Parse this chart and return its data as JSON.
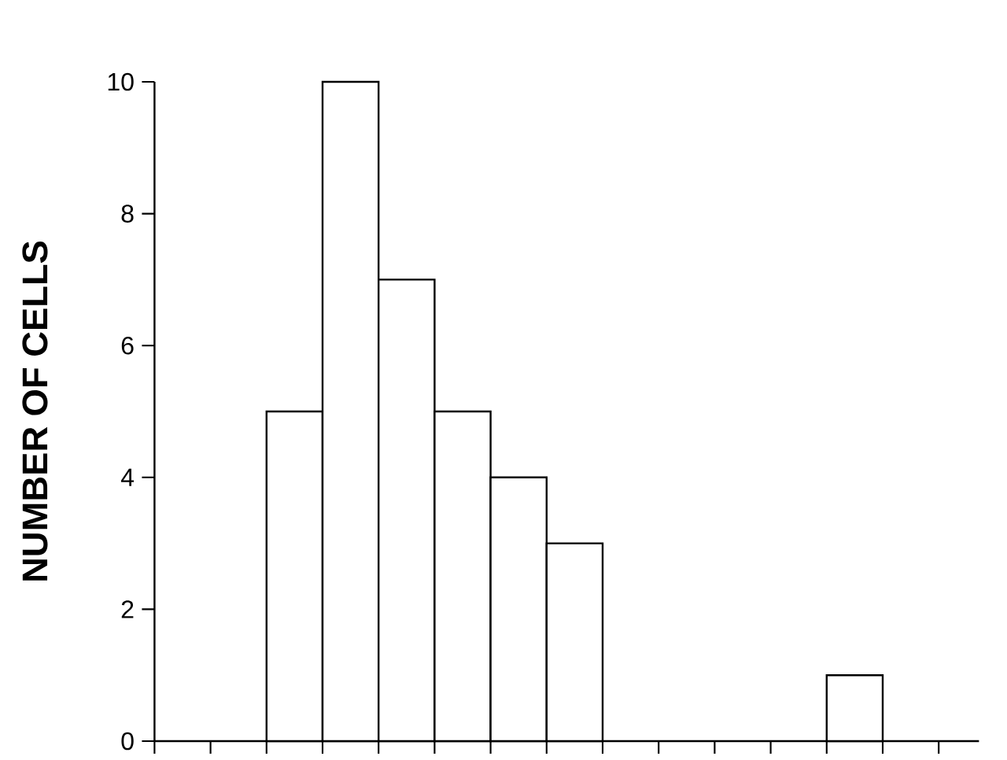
{
  "chart_data": {
    "type": "bar",
    "ylabel": "NUMBER OF CELLS",
    "categories": [
      null,
      null,
      null,
      null,
      null,
      null,
      null,
      null,
      null,
      null,
      null,
      null,
      null,
      null,
      null
    ],
    "values": [
      0,
      0,
      5,
      10,
      7,
      5,
      4,
      3,
      0,
      0,
      0,
      0,
      1,
      0,
      0
    ],
    "color": "#ffffff",
    "ylim": [
      0,
      10
    ],
    "yticks": [
      0,
      2,
      4,
      6,
      8,
      10
    ],
    "tick_labels": "y",
    "grid": false
  }
}
